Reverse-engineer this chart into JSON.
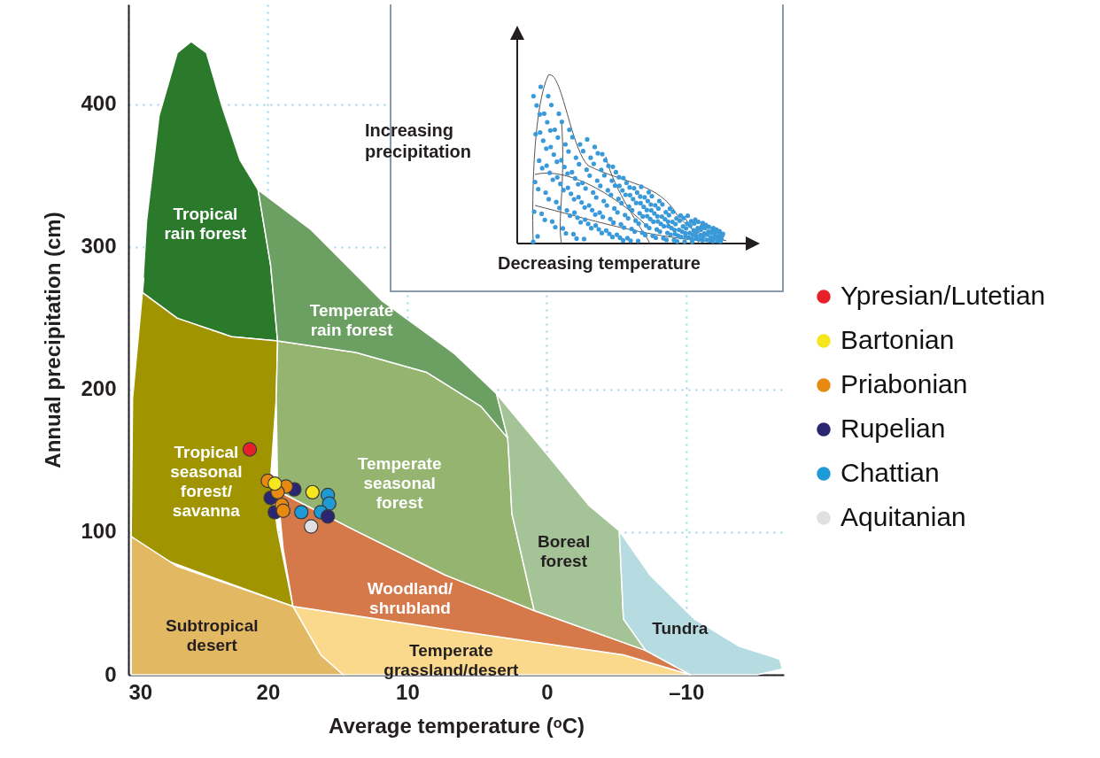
{
  "chart_data": {
    "type": "scatter",
    "xlabel": "Average temperature (ᵒC)",
    "ylabel": "Annual precipitation (cm)",
    "xlim": [
      30,
      -17
    ],
    "ylim": [
      0,
      470
    ],
    "xticks": [
      30,
      20,
      10,
      0,
      {
        "value": -10,
        "label": "–10"
      }
    ],
    "yticks": [
      0,
      100,
      200,
      300,
      400
    ],
    "grid": true,
    "legend": "right",
    "series": [
      {
        "type": "area",
        "name": "Tropical rain forest",
        "color": "#2b7a2b",
        "x": [
          29.0,
          28.7,
          27.8,
          26.5,
          25.5,
          24.4,
          23.3,
          22.0,
          20.7,
          19.8,
          19.3,
          22.6,
          26.5
        ],
        "values": [
          268,
          318,
          392,
          436,
          444,
          436,
          399,
          361,
          340,
          287,
          234,
          237,
          250
        ]
      },
      {
        "type": "area",
        "name": "Tropical seasonal forest/ savanna",
        "color": "#a09400",
        "x": [
          28.9,
          29.0,
          26.5,
          22.6,
          19.3,
          19.4,
          19.8,
          19.3,
          18.2,
          23.9,
          27.8,
          29.8,
          29.7
        ],
        "values": [
          278,
          268,
          250,
          237,
          234,
          194,
          138,
          101,
          48,
          68,
          82,
          97,
          194
        ]
      },
      {
        "type": "area",
        "name": "Subtropical desert",
        "color": "#e2b862",
        "x": [
          29.8,
          26.5,
          18.2,
          16.2,
          14.6,
          29.8
        ],
        "values": [
          97,
          76,
          48,
          14,
          0,
          0
        ]
      },
      {
        "type": "area",
        "name": "Temperate grassland/desert",
        "color": "#fbd98c",
        "x": [
          18.2,
          7.3,
          -5.5,
          -10.3,
          14.6,
          16.2
        ],
        "values": [
          48,
          32,
          14,
          0,
          0,
          14
        ]
      },
      {
        "type": "area",
        "name": "Woodland/ shrubland",
        "color": "#d5784a",
        "x": [
          19.3,
          13.7,
          7.3,
          0.9,
          -7.1,
          -10.3,
          -5.5,
          7.3,
          18.2,
          18.9
        ],
        "values": [
          129,
          101,
          70,
          45,
          17,
          0,
          14,
          32,
          48,
          88
        ]
      },
      {
        "type": "area",
        "name": "Temperate seasonal forest",
        "color": "#94b470",
        "x": [
          19.3,
          13.7,
          8.6,
          4.7,
          2.8,
          2.7,
          2.5,
          0.9,
          7.3,
          13.7,
          19.3,
          19.4
        ],
        "values": [
          234,
          226,
          212,
          188,
          166,
          150,
          113,
          45,
          70,
          101,
          129,
          194
        ]
      },
      {
        "type": "area",
        "name": "Temperate rain forest",
        "color": "#6c9f62",
        "x": [
          20.7,
          16.9,
          11.8,
          6.6,
          3.6,
          2.8,
          4.7,
          8.6,
          13.7,
          19.3,
          19.8
        ],
        "values": [
          340,
          312,
          262,
          225,
          197,
          166,
          188,
          212,
          226,
          234,
          287
        ]
      },
      {
        "type": "area",
        "name": "Boreal forest",
        "color": "#a4c396",
        "x": [
          3.6,
          -0.4,
          -3.0,
          -5.2,
          -5.5,
          -7.1,
          0.9,
          2.5,
          2.7,
          2.8
        ],
        "values": [
          197,
          150,
          119,
          101,
          39,
          17,
          45,
          113,
          150,
          166
        ]
      },
      {
        "type": "area",
        "name": "Tundra",
        "color": "#b6dce1",
        "x": [
          -5.2,
          -7.4,
          -10.6,
          -13.8,
          -16.7,
          -16.9,
          -15.1,
          -10.3,
          -7.1,
          -5.5
        ],
        "values": [
          101,
          70,
          39,
          20,
          11,
          4,
          0,
          0,
          17,
          39
        ]
      },
      {
        "marker": "circle",
        "name": "Ypresian/Lutetian",
        "color": "#e8202a",
        "x": [
          21.3
        ],
        "values": [
          158
        ]
      },
      {
        "marker": "circle",
        "name": "Bartonian",
        "color": "#f5e61e",
        "x": [
          19.5,
          16.8
        ],
        "values": [
          134,
          128
        ]
      },
      {
        "marker": "circle",
        "name": "Priabonian",
        "color": "#e88a12",
        "x": [
          20.0,
          18.7,
          19.3,
          19.0,
          18.9
        ],
        "values": [
          136,
          132,
          128,
          119,
          115
        ]
      },
      {
        "marker": "circle",
        "name": "Rupelian",
        "color": "#2a2670",
        "x": [
          18.1,
          19.8,
          19.5,
          15.7
        ],
        "values": [
          130,
          124,
          114,
          111
        ]
      },
      {
        "marker": "circle",
        "name": "Chattian",
        "color": "#1e9ad6",
        "x": [
          15.7,
          15.6,
          17.6,
          16.2
        ],
        "values": [
          126,
          120,
          114,
          114
        ]
      },
      {
        "marker": "circle",
        "name": "Aquitanian",
        "color": "#e0e0e0",
        "x": [
          16.9
        ],
        "values": [
          104
        ]
      }
    ],
    "annotations": [
      "Increasing precipitation",
      "Decreasing temperature"
    ]
  }
}
